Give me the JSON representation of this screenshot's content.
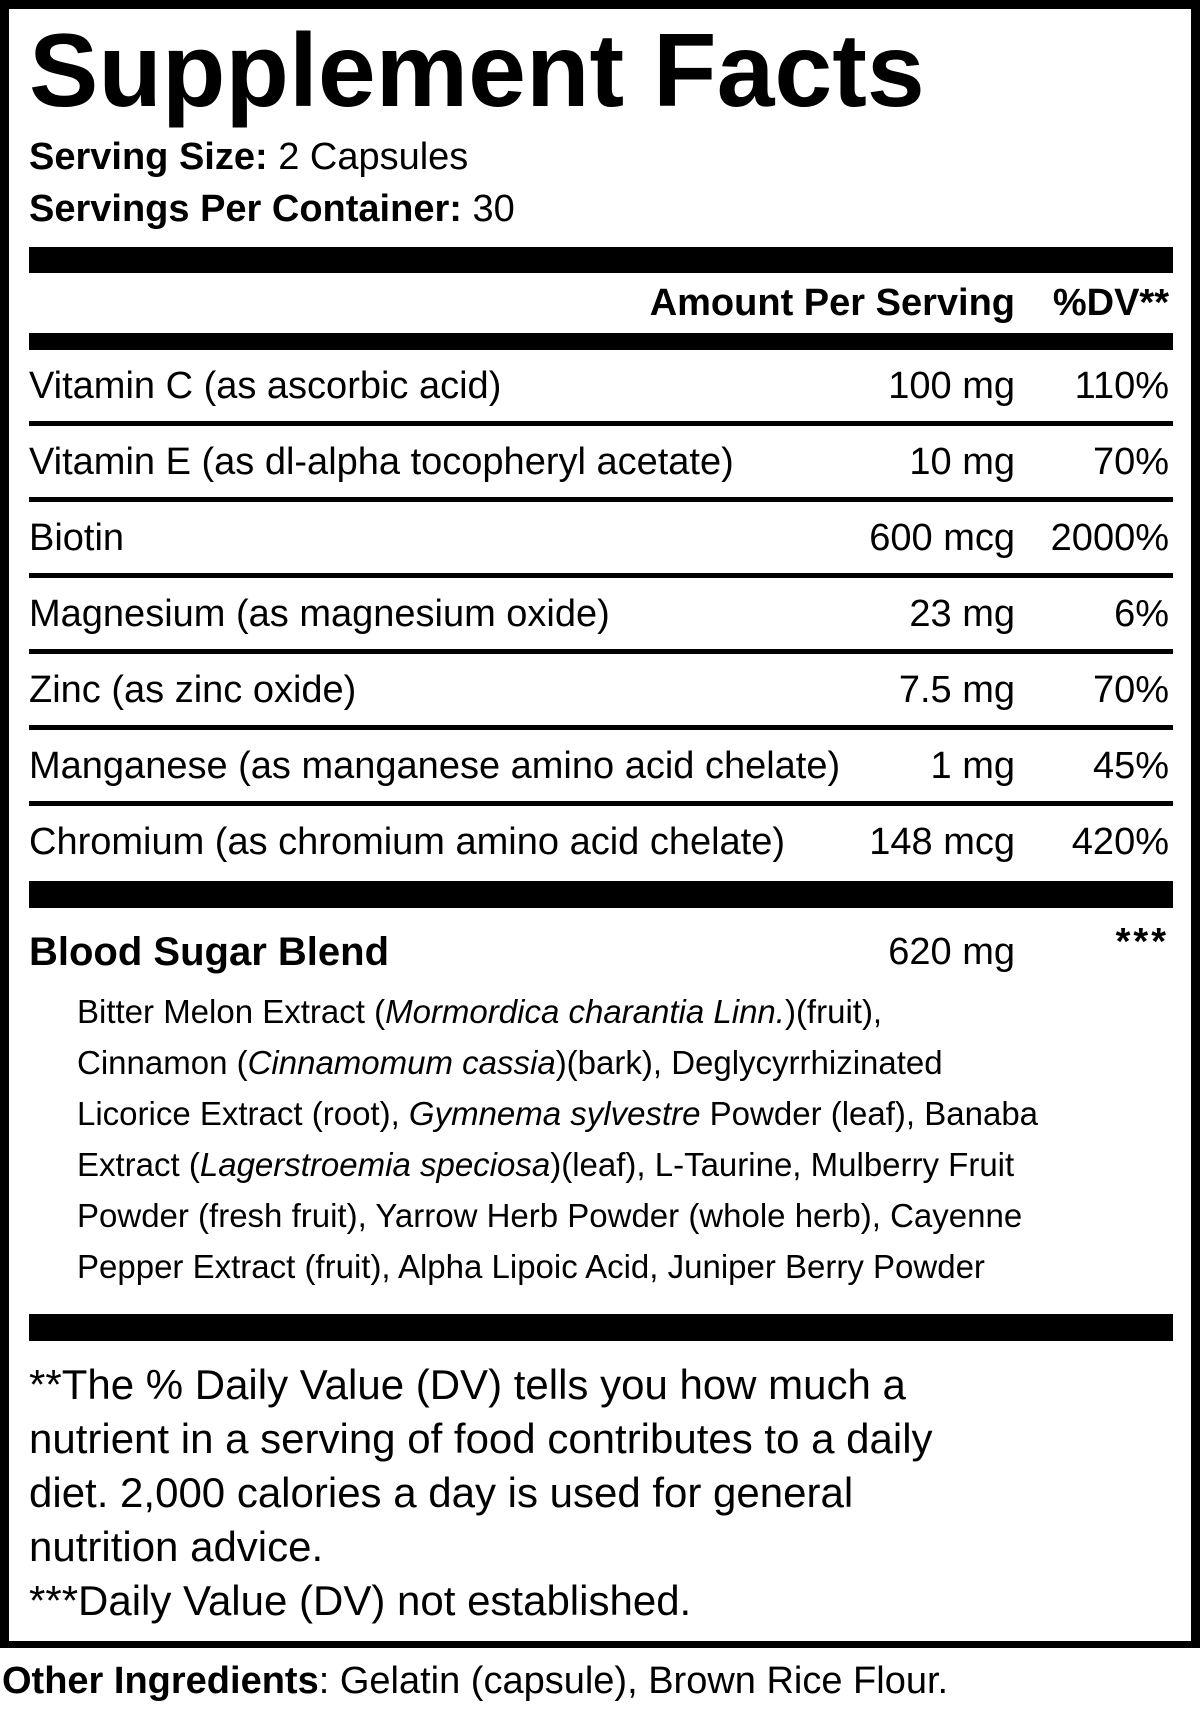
{
  "title": "Supplement Facts",
  "serving": {
    "size_label": "Serving Size:",
    "size_value": " 2 Capsules",
    "per_container_label": "Servings Per Container:",
    "per_container_value": " 30"
  },
  "table": {
    "amount_header": "Amount Per Serving",
    "dv_header": "%DV**",
    "rows": [
      {
        "name": "Vitamin C (as ascorbic acid)",
        "amount": "100 mg",
        "dv": "110%"
      },
      {
        "name": "Vitamin E (as dl-alpha tocopheryl acetate)",
        "amount": "10 mg",
        "dv": "70%"
      },
      {
        "name": "Biotin",
        "amount": "600 mcg",
        "dv": "2000%"
      },
      {
        "name": "Magnesium (as magnesium oxide)",
        "amount": "23 mg",
        "dv": "6%"
      },
      {
        "name": "Zinc (as zinc oxide)",
        "amount": "7.5 mg",
        "dv": "70%"
      },
      {
        "name": "Manganese (as manganese amino acid chelate)",
        "amount": "1 mg",
        "dv": "45%"
      },
      {
        "name": "Chromium (as chromium amino acid chelate)",
        "amount": "148 mcg",
        "dv": "420%"
      }
    ]
  },
  "blend": {
    "name": "Blood Sugar Blend",
    "amount": "620 mg",
    "dv": "***",
    "description_segments": [
      {
        "text": "Bitter Melon Extract (",
        "italic": false
      },
      {
        "text": "Mormordica charantia Linn.",
        "italic": true
      },
      {
        "text": ")(fruit),\nCinnamon (",
        "italic": false
      },
      {
        "text": "Cinnamomum cassia",
        "italic": true
      },
      {
        "text": ")(bark), Deglycyrrhizinated\nLicorice Extract (root), ",
        "italic": false
      },
      {
        "text": "Gymnema sylvestre",
        "italic": true
      },
      {
        "text": " Powder (leaf), Banaba\nExtract (",
        "italic": false
      },
      {
        "text": "Lagerstroemia speciosa",
        "italic": true
      },
      {
        "text": ")(leaf), L-Taurine, Mulberry Fruit\nPowder (fresh fruit), Yarrow Herb Powder (whole herb), Cayenne\nPepper Extract (fruit), Alpha Lipoic Acid, Juniper Berry Powder",
        "italic": false
      }
    ]
  },
  "footnotes": {
    "dv_note": "**The % Daily Value (DV) tells you how much a\nnutrient in a serving of food contributes to a daily\ndiet. 2,000 calories a day is used for general\nnutrition advice.",
    "not_established_note": "***Daily Value (DV) not established."
  },
  "other_ingredients": {
    "label": "Other Ingredients",
    "value": ": Gelatin (capsule), Brown Rice Flour."
  },
  "colors": {
    "ink": "#000000",
    "background": "#ffffff"
  }
}
